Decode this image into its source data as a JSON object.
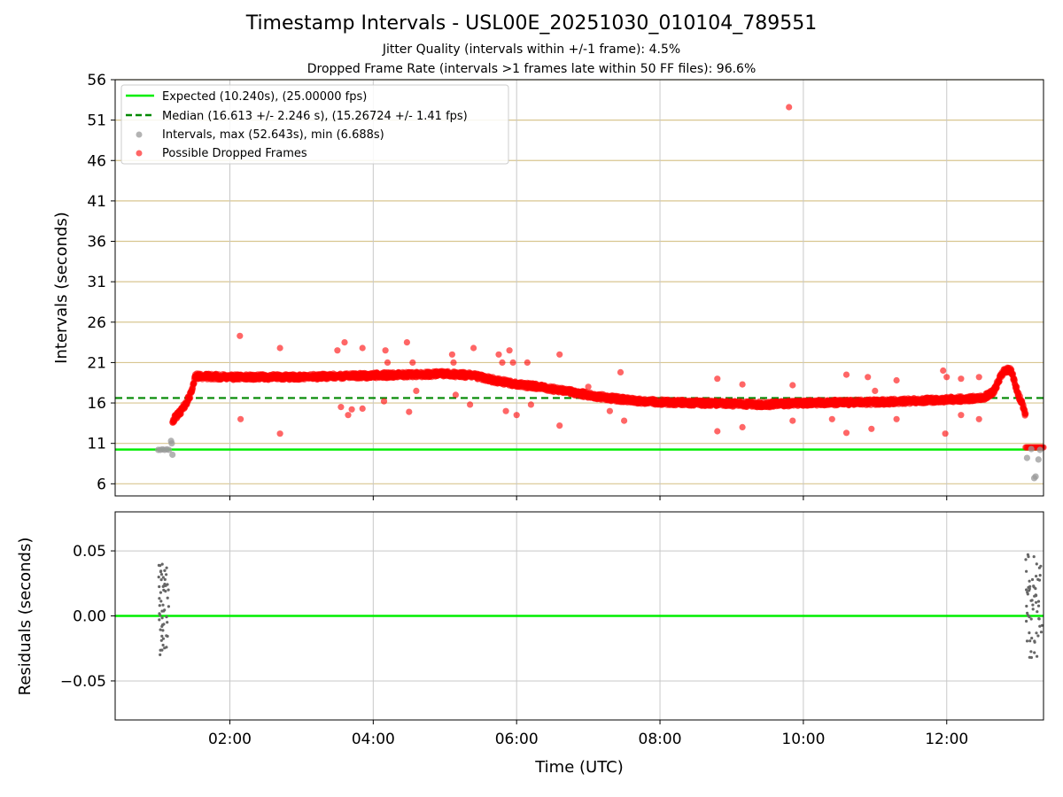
{
  "chart_data": [
    {
      "type": "scatter",
      "title": "Timestamp Intervals - USL00E_20251030_010104_789551",
      "subtitle_1": "Jitter Quality (intervals within +/-1 frame): 4.5%",
      "subtitle_2": "Dropped Frame Rate (intervals >1 frames late within 50 FF files): 96.6%",
      "xlabel": "",
      "ylabel": "Intervals (seconds)",
      "xlim_hours": [
        0.4,
        13.35
      ],
      "ylim": [
        4.5,
        56
      ],
      "yticks": [
        "6",
        "11",
        "16",
        "21",
        "26",
        "31",
        "36",
        "41",
        "46",
        "51",
        "56"
      ],
      "xticks_hours": [
        2,
        4,
        6,
        8,
        10,
        12
      ],
      "expected_interval": 10.24,
      "expected_fps": 25.0,
      "median_interval": 16.613,
      "median_std": 2.246,
      "median_fps": 15.26724,
      "median_fps_std": 1.41,
      "max_interval": 52.643,
      "min_interval": 6.688,
      "legend": [
        "Expected (10.240s), (25.00000 fps)",
        "Median (16.613 +/- 2.246 s), (15.26724 +/- 1.41 fps)",
        "Intervals, max (52.643s), min (6.688s)",
        "Possible Dropped Frames"
      ],
      "legend_position": "upper-left",
      "trend_segments": [
        {
          "t": [
            1.2,
            1.3,
            1.38,
            1.45,
            1.52
          ],
          "y": [
            13.8,
            14.8,
            15.8,
            17.0,
            19.3
          ]
        },
        {
          "t": [
            1.52,
            2.0,
            3.0,
            4.0,
            5.0,
            5.4,
            5.7,
            6.0,
            6.3,
            6.6,
            7.0,
            7.3,
            7.6,
            8.0,
            8.5,
            9.0,
            9.5,
            10.0,
            11.0,
            12.0,
            12.5,
            12.65,
            12.75,
            12.8,
            12.9
          ]
        },
        {
          "t": [
            12.9,
            13.0,
            13.05,
            13.1
          ],
          "y": [
            20.0,
            17.0,
            16.0,
            14.5
          ]
        }
      ],
      "trend_values": [
        19.3,
        19.2,
        19.2,
        19.4,
        19.6,
        19.4,
        18.8,
        18.3,
        18.0,
        17.6,
        17.0,
        16.6,
        16.3,
        16.1,
        16.0,
        15.9,
        15.8,
        16.0,
        16.1,
        16.4,
        16.6,
        17.4,
        19.2,
        20.1,
        20.0
      ],
      "dropped_outliers": [
        {
          "t": 2.14,
          "y": 24.3
        },
        {
          "t": 2.15,
          "y": 14.0
        },
        {
          "t": 2.7,
          "y": 22.8
        },
        {
          "t": 2.7,
          "y": 12.2
        },
        {
          "t": 3.5,
          "y": 22.5
        },
        {
          "t": 3.55,
          "y": 15.5
        },
        {
          "t": 3.6,
          "y": 23.5
        },
        {
          "t": 3.65,
          "y": 14.5
        },
        {
          "t": 3.7,
          "y": 15.2
        },
        {
          "t": 3.85,
          "y": 22.8
        },
        {
          "t": 3.85,
          "y": 15.3
        },
        {
          "t": 4.15,
          "y": 16.2
        },
        {
          "t": 4.17,
          "y": 22.5
        },
        {
          "t": 4.2,
          "y": 21.0
        },
        {
          "t": 4.47,
          "y": 23.5
        },
        {
          "t": 4.5,
          "y": 14.9
        },
        {
          "t": 4.55,
          "y": 21.0
        },
        {
          "t": 4.6,
          "y": 17.5
        },
        {
          "t": 5.1,
          "y": 22.0
        },
        {
          "t": 5.12,
          "y": 21.0
        },
        {
          "t": 5.15,
          "y": 17.0
        },
        {
          "t": 5.35,
          "y": 15.8
        },
        {
          "t": 5.4,
          "y": 22.8
        },
        {
          "t": 5.75,
          "y": 22.0
        },
        {
          "t": 5.8,
          "y": 21.0
        },
        {
          "t": 5.85,
          "y": 15.0
        },
        {
          "t": 5.9,
          "y": 22.5
        },
        {
          "t": 5.95,
          "y": 21.0
        },
        {
          "t": 6.0,
          "y": 14.5
        },
        {
          "t": 6.15,
          "y": 21.0
        },
        {
          "t": 6.2,
          "y": 15.8
        },
        {
          "t": 6.6,
          "y": 22.0
        },
        {
          "t": 6.6,
          "y": 13.2
        },
        {
          "t": 7.0,
          "y": 18.0
        },
        {
          "t": 7.3,
          "y": 15.0
        },
        {
          "t": 7.45,
          "y": 19.8
        },
        {
          "t": 7.5,
          "y": 13.8
        },
        {
          "t": 8.8,
          "y": 19.0
        },
        {
          "t": 8.8,
          "y": 12.5
        },
        {
          "t": 9.15,
          "y": 18.3
        },
        {
          "t": 9.15,
          "y": 13.0
        },
        {
          "t": 9.8,
          "y": 52.6
        },
        {
          "t": 9.85,
          "y": 18.2
        },
        {
          "t": 9.85,
          "y": 13.8
        },
        {
          "t": 10.4,
          "y": 14.0
        },
        {
          "t": 10.6,
          "y": 19.5
        },
        {
          "t": 10.6,
          "y": 12.3
        },
        {
          "t": 10.9,
          "y": 19.2
        },
        {
          "t": 10.95,
          "y": 12.8
        },
        {
          "t": 11.0,
          "y": 17.5
        },
        {
          "t": 11.3,
          "y": 18.8
        },
        {
          "t": 11.3,
          "y": 14.0
        },
        {
          "t": 11.95,
          "y": 20.0
        },
        {
          "t": 11.98,
          "y": 12.2
        },
        {
          "t": 12.0,
          "y": 19.2
        },
        {
          "t": 12.2,
          "y": 19.0
        },
        {
          "t": 12.2,
          "y": 14.5
        },
        {
          "t": 12.45,
          "y": 19.2
        },
        {
          "t": 12.45,
          "y": 14.0
        }
      ],
      "dropped_flat_segment": {
        "t_start": 13.1,
        "t_end": 13.35,
        "y": 10.5
      },
      "gray_intervals": [
        {
          "t": 1.0,
          "y": 10.2
        },
        {
          "t": 1.03,
          "y": 10.2
        },
        {
          "t": 1.06,
          "y": 10.25
        },
        {
          "t": 1.09,
          "y": 10.2
        },
        {
          "t": 1.12,
          "y": 10.25
        },
        {
          "t": 1.15,
          "y": 10.2
        },
        {
          "t": 1.18,
          "y": 11.3
        },
        {
          "t": 1.19,
          "y": 11.0
        },
        {
          "t": 1.2,
          "y": 9.6
        },
        {
          "t": 13.12,
          "y": 9.2
        },
        {
          "t": 13.18,
          "y": 10.3
        },
        {
          "t": 13.22,
          "y": 6.7
        },
        {
          "t": 13.24,
          "y": 6.9
        },
        {
          "t": 13.28,
          "y": 9.0
        },
        {
          "t": 13.3,
          "y": 10.2
        }
      ]
    },
    {
      "type": "scatter",
      "title": "",
      "xlabel": "Time (UTC)",
      "ylabel": "Residuals (seconds)",
      "xlim_hours": [
        0.4,
        13.35
      ],
      "ylim": [
        -0.08,
        0.08
      ],
      "yticks": [
        "0.05",
        "0.00",
        "−0.05"
      ],
      "ytick_values": [
        0.05,
        0.0,
        -0.05
      ],
      "xticks": [
        "02:00",
        "04:00",
        "06:00",
        "08:00",
        "10:00",
        "12:00"
      ],
      "zero_line": 0.0,
      "clusters": [
        {
          "t_start": 1.0,
          "t_end": 1.15,
          "ymin": -0.03,
          "ymax": 0.04,
          "count": 55,
          "seed": 7
        },
        {
          "t_start": 13.1,
          "t_end": 13.33,
          "ymin": -0.032,
          "ymax": 0.048,
          "count": 60,
          "seed": 19
        }
      ]
    }
  ],
  "colors": {
    "expected": "#00ee00",
    "median": "#008800",
    "dropped": "#ff0000",
    "interval": "#999999",
    "residual": "#666666",
    "hgrid": "#d8c690",
    "vgrid": "#c8c8c8"
  }
}
